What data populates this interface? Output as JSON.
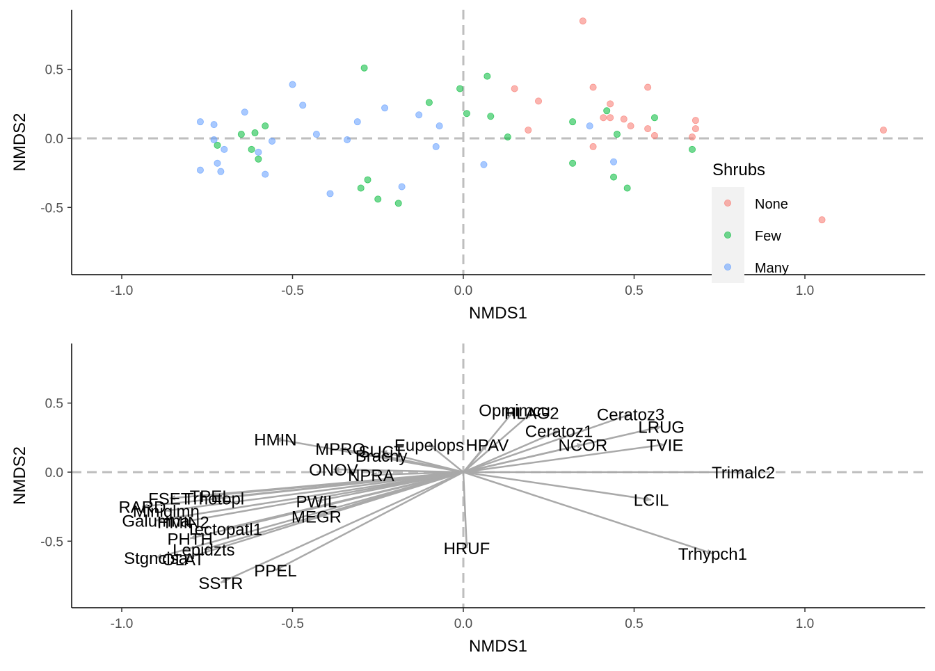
{
  "chart_data": [
    {
      "type": "scatter",
      "xlabel": "NMDS1",
      "ylabel": "NMDS2",
      "xlim": [
        -1.15,
        1.33
      ],
      "ylim": [
        -0.97,
        0.93
      ],
      "xticks": [
        -1.0,
        -0.5,
        0.0,
        0.5,
        1.0
      ],
      "xtick_labels": [
        "-1.0",
        "-0.5",
        "0.0",
        "0.5",
        "1.0"
      ],
      "yticks": [
        -0.5,
        0.0,
        0.5
      ],
      "ytick_labels": [
        "-0.5",
        "0.0",
        "0.5"
      ],
      "grid": false,
      "reference_lines": {
        "x": 0,
        "y": 0,
        "style": "dashed",
        "color": "#bebebe"
      },
      "legend": {
        "title": "Shrubs",
        "position": "right",
        "entries": [
          {
            "label": "None",
            "color": "#F8766D"
          },
          {
            "label": "Few",
            "color": "#00BA38"
          },
          {
            "label": "Many",
            "color": "#619CFF"
          }
        ]
      },
      "series": [
        {
          "name": "None",
          "color": "#F8766D",
          "points": [
            [
              0.35,
              0.85
            ],
            [
              0.15,
              0.36
            ],
            [
              0.22,
              0.27
            ],
            [
              0.19,
              0.06
            ],
            [
              0.38,
              0.37
            ],
            [
              0.43,
              0.25
            ],
            [
              0.41,
              0.15
            ],
            [
              0.43,
              0.15
            ],
            [
              0.47,
              0.14
            ],
            [
              0.49,
              0.09
            ],
            [
              0.38,
              -0.06
            ],
            [
              0.54,
              0.37
            ],
            [
              0.54,
              0.07
            ],
            [
              0.56,
              0.02
            ],
            [
              0.67,
              0.01
            ],
            [
              0.68,
              0.13
            ],
            [
              0.68,
              0.07
            ],
            [
              1.23,
              0.06
            ],
            [
              1.05,
              -0.59
            ]
          ]
        },
        {
          "name": "Few",
          "color": "#00BA38",
          "points": [
            [
              -0.29,
              0.51
            ],
            [
              -0.1,
              0.26
            ],
            [
              -0.01,
              0.36
            ],
            [
              0.01,
              0.18
            ],
            [
              0.07,
              0.45
            ],
            [
              0.08,
              0.16
            ],
            [
              0.13,
              0.01
            ],
            [
              0.32,
              0.12
            ],
            [
              0.42,
              0.2
            ],
            [
              0.56,
              0.15
            ],
            [
              0.45,
              0.03
            ],
            [
              0.44,
              -0.28
            ],
            [
              0.48,
              -0.36
            ],
            [
              0.67,
              -0.08
            ],
            [
              0.32,
              -0.18
            ],
            [
              -0.72,
              -0.05
            ],
            [
              -0.65,
              0.03
            ],
            [
              -0.61,
              0.04
            ],
            [
              -0.58,
              0.09
            ],
            [
              -0.62,
              -0.08
            ],
            [
              -0.6,
              -0.15
            ],
            [
              -0.3,
              -0.36
            ],
            [
              -0.28,
              -0.3
            ],
            [
              -0.25,
              -0.44
            ],
            [
              -0.19,
              -0.47
            ]
          ]
        },
        {
          "name": "Many",
          "color": "#619CFF",
          "points": [
            [
              -0.77,
              0.12
            ],
            [
              -0.73,
              0.1
            ],
            [
              -0.7,
              -0.08
            ],
            [
              -0.73,
              -0.01
            ],
            [
              -0.72,
              -0.18
            ],
            [
              -0.77,
              -0.23
            ],
            [
              -0.71,
              -0.24
            ],
            [
              -0.64,
              0.19
            ],
            [
              -0.6,
              -0.1
            ],
            [
              -0.58,
              -0.26
            ],
            [
              -0.56,
              -0.02
            ],
            [
              -0.5,
              0.39
            ],
            [
              -0.47,
              0.24
            ],
            [
              -0.43,
              0.03
            ],
            [
              -0.34,
              -0.01
            ],
            [
              -0.31,
              0.12
            ],
            [
              -0.23,
              0.22
            ],
            [
              -0.13,
              0.17
            ],
            [
              -0.07,
              0.09
            ],
            [
              -0.08,
              -0.06
            ],
            [
              -0.39,
              -0.4
            ],
            [
              -0.18,
              -0.35
            ],
            [
              0.06,
              -0.19
            ],
            [
              0.37,
              0.09
            ],
            [
              0.44,
              -0.17
            ]
          ]
        }
      ]
    },
    {
      "type": "biplot",
      "xlabel": "NMDS1",
      "ylabel": "NMDS2",
      "xlim": [
        -1.15,
        1.33
      ],
      "ylim": [
        -0.97,
        0.93
      ],
      "xticks": [
        -1.0,
        -0.5,
        0.0,
        0.5,
        1.0
      ],
      "xtick_labels": [
        "-1.0",
        "-0.5",
        "0.0",
        "0.5",
        "1.0"
      ],
      "yticks": [
        -0.5,
        0.0,
        0.5
      ],
      "ytick_labels": [
        "-0.5",
        "0.0",
        "0.5"
      ],
      "grid": false,
      "reference_lines": {
        "x": 0,
        "y": 0,
        "style": "dashed",
        "color": "#bebebe"
      },
      "arrow_color": "#a9a9a9",
      "vectors": [
        {
          "label": "Opmimcu",
          "x": 0.15,
          "y": 0.45
        },
        {
          "label": "HLAG2",
          "x": 0.2,
          "y": 0.43
        },
        {
          "label": "Ceratoz3",
          "x": 0.49,
          "y": 0.42
        },
        {
          "label": "Ceratoz1",
          "x": 0.28,
          "y": 0.3
        },
        {
          "label": "LRUG",
          "x": 0.58,
          "y": 0.33
        },
        {
          "label": "TVIE",
          "x": 0.59,
          "y": 0.2
        },
        {
          "label": "HPAV",
          "x": 0.07,
          "y": 0.2
        },
        {
          "label": "NCOR",
          "x": 0.35,
          "y": 0.2
        },
        {
          "label": "Eupelops",
          "x": -0.1,
          "y": 0.2
        },
        {
          "label": "Trimalc2",
          "x": 0.82,
          "y": 0.0
        },
        {
          "label": "LCIL",
          "x": 0.55,
          "y": -0.2
        },
        {
          "label": "Trhypch1",
          "x": 0.73,
          "y": -0.59
        },
        {
          "label": "HRUF",
          "x": 0.01,
          "y": -0.55
        },
        {
          "label": "HMIN",
          "x": -0.55,
          "y": 0.24
        },
        {
          "label": "MPRO",
          "x": -0.36,
          "y": 0.17
        },
        {
          "label": "SUCT",
          "x": -0.24,
          "y": 0.15
        },
        {
          "label": "Brachy",
          "x": -0.24,
          "y": 0.12
        },
        {
          "label": "ONOV",
          "x": -0.38,
          "y": 0.02
        },
        {
          "label": "NPRA",
          "x": -0.27,
          "y": -0.02
        },
        {
          "label": "PWIL",
          "x": -0.43,
          "y": -0.21
        },
        {
          "label": "MEGR",
          "x": -0.43,
          "y": -0.32
        },
        {
          "label": "TPEL",
          "x": -0.74,
          "y": -0.17
        },
        {
          "label": "Trhotopl",
          "x": -0.73,
          "y": -0.19
        },
        {
          "label": "FSET",
          "x": -0.86,
          "y": -0.19
        },
        {
          "label": "RARD",
          "x": -0.94,
          "y": -0.25
        },
        {
          "label": "Miniglmn",
          "x": -0.87,
          "y": -0.28
        },
        {
          "label": "Galumna",
          "x": -0.9,
          "y": -0.35
        },
        {
          "label": "HMIN2",
          "x": -0.82,
          "y": -0.36
        },
        {
          "label": "Tectopatl1",
          "x": -0.7,
          "y": -0.41
        },
        {
          "label": "PHTH",
          "x": -0.8,
          "y": -0.48
        },
        {
          "label": "Lepidzts",
          "x": -0.76,
          "y": -0.56
        },
        {
          "label": "Stgncisa",
          "x": -0.9,
          "y": -0.62
        },
        {
          "label": "OLAT",
          "x": -0.82,
          "y": -0.63
        },
        {
          "label": "PPEL",
          "x": -0.55,
          "y": -0.71
        },
        {
          "label": "SSTR",
          "x": -0.71,
          "y": -0.8
        }
      ]
    }
  ]
}
